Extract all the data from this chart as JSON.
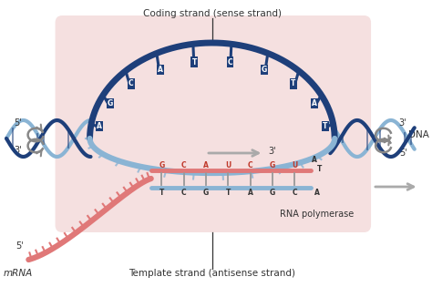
{
  "bg_color": "#ffffff",
  "pink_box_color": "#f5e0e0",
  "coding_strand_label": "Coding strand (sense strand)",
  "template_strand_label": "Template strand (antisense strand)",
  "rna_pol_label": "RNA polymerase",
  "mrna_label": "mRNA",
  "dna_label": "DNA",
  "dark_blue": "#1e3f7a",
  "light_blue": "#8ab4d4",
  "pink_strand": "#e07878",
  "gray": "#aaaaaa",
  "red_text": "#c0392b",
  "dark_text": "#333333",
  "coding_bases": [
    "A",
    "G",
    "C",
    "A",
    "T",
    "C",
    "G",
    "T",
    "A",
    "T"
  ],
  "mrna_bases_top": [
    "G",
    "C",
    "A",
    "U",
    "C",
    "G",
    "U"
  ],
  "template_bases_bottom": [
    "T",
    "C",
    "G",
    "T",
    "A",
    "G",
    "C",
    "A"
  ]
}
